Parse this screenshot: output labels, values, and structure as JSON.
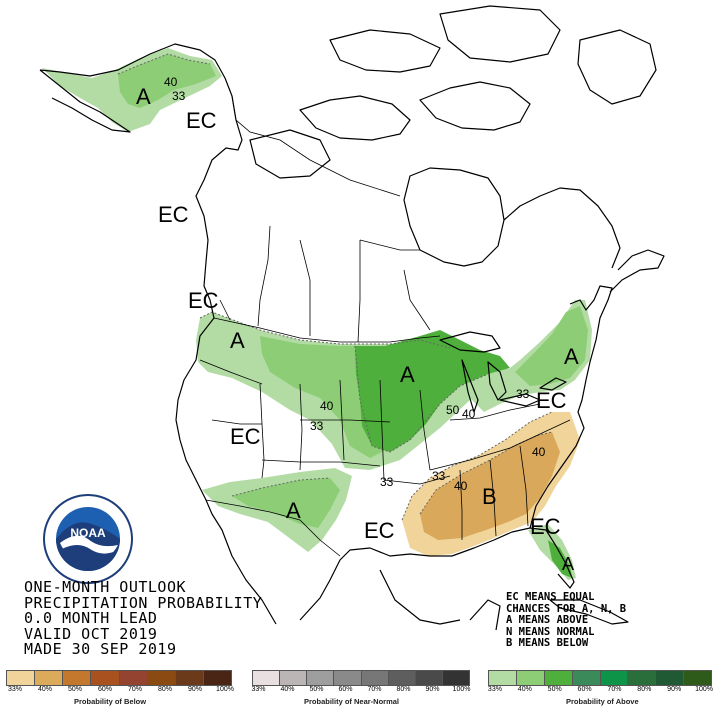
{
  "map": {
    "region_labels": [
      {
        "id": "alaska-a",
        "text": "A"
      },
      {
        "id": "alaska-ec",
        "text": "EC"
      },
      {
        "id": "canada-ec-1",
        "text": "EC"
      },
      {
        "id": "canada-ec-2",
        "text": "EC"
      },
      {
        "id": "pnw-a",
        "text": "A"
      },
      {
        "id": "west-ec",
        "text": "EC"
      },
      {
        "id": "sw-a",
        "text": "A"
      },
      {
        "id": "midwest-a",
        "text": "A"
      },
      {
        "id": "ne-a",
        "text": "A"
      },
      {
        "id": "east-ec",
        "text": "EC"
      },
      {
        "id": "south-ec",
        "text": "EC"
      },
      {
        "id": "se-b",
        "text": "B"
      },
      {
        "id": "fl-ec",
        "text": "EC"
      },
      {
        "id": "fl-a",
        "text": "A"
      }
    ],
    "contour_labels": [
      {
        "id": "ak-40",
        "text": "40"
      },
      {
        "id": "ak-33",
        "text": "33"
      },
      {
        "id": "plains-40",
        "text": "40"
      },
      {
        "id": "plains-33",
        "text": "33"
      },
      {
        "id": "lakes-50",
        "text": "50"
      },
      {
        "id": "lakes-40",
        "text": "40"
      },
      {
        "id": "ohio-33",
        "text": "33"
      },
      {
        "id": "tx-33",
        "text": "33"
      },
      {
        "id": "se-33",
        "text": "33"
      },
      {
        "id": "se-40a",
        "text": "40"
      },
      {
        "id": "se-40b",
        "text": "40"
      }
    ],
    "colors": {
      "above_33": "#b3dca5",
      "above_40": "#8ccd76",
      "above_50": "#4faf3c",
      "below_33": "#f0d49a",
      "below_40": "#daa85a",
      "land_outline": "#000000",
      "water": "#ffffff"
    }
  },
  "title": {
    "line1": "ONE-MONTH OUTLOOK",
    "line2": "PRECIPITATION PROBABILITY",
    "line3": "0.0 MONTH LEAD",
    "line4": "VALID OCT 2019",
    "line5": "MADE 30 SEP 2019"
  },
  "legend_note": {
    "line1": "EC MEANS EQUAL",
    "line2": "CHANCES FOR A, N, B",
    "line3": "A MEANS ABOVE",
    "line4": "N MEANS NORMAL",
    "line5": "B MEANS BELOW"
  },
  "scales": {
    "below": {
      "title": "Probability of Below",
      "ticks": [
        "33%",
        "40%",
        "50%",
        "60%",
        "70%",
        "80%",
        "90%",
        "100%"
      ],
      "colors": [
        "#f0d49a",
        "#dbaa5a",
        "#c3782e",
        "#a9521f",
        "#954331",
        "#8a4a12",
        "#6b3a1a",
        "#4a2516"
      ]
    },
    "normal": {
      "title": "Probability of Near-Normal",
      "ticks": [
        "33%",
        "40%",
        "50%",
        "60%",
        "70%",
        "80%",
        "90%",
        "100%"
      ],
      "colors": [
        "#e8e0e0",
        "#bcb5b5",
        "#9e9e9e",
        "#8a8a8a",
        "#777777",
        "#5e5e5e",
        "#4a4a4a",
        "#333333"
      ]
    },
    "above": {
      "title": "Probability of Above",
      "ticks": [
        "33%",
        "40%",
        "50%",
        "60%",
        "70%",
        "80%",
        "90%",
        "100%"
      ],
      "colors": [
        "#b3dca5",
        "#8ccd76",
        "#4faf3c",
        "#3b8a5a",
        "#0e9448",
        "#2a6e3c",
        "#1f5a34",
        "#2e5a1a"
      ]
    }
  },
  "logo": {
    "text": "NOAA",
    "ring_text": "NATIONAL OCEANIC AND ATMOSPHERIC ADMINISTRATION · U.S. DEPARTMENT OF COMMERCE"
  }
}
